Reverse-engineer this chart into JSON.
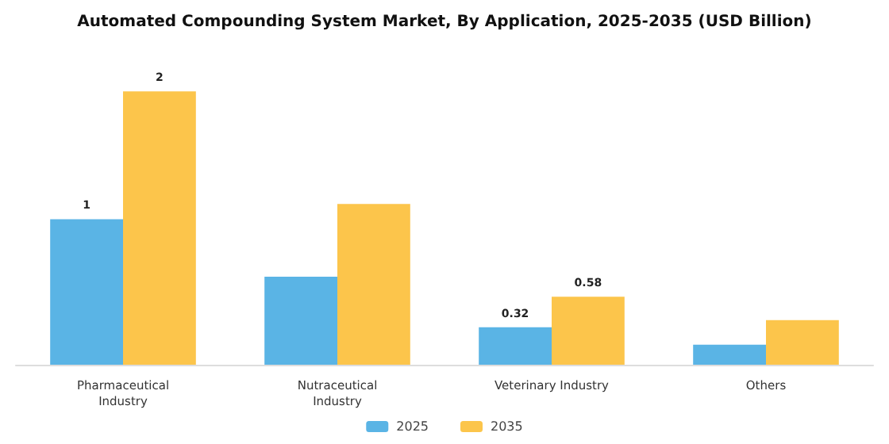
{
  "chart_data": {
    "type": "bar",
    "title": "Automated Compounding System Market, By Application, 2025-2035 (USD Billion)",
    "categories": [
      "Pharmaceutical\nIndustry",
      "Nutraceutical\nIndustry",
      "Veterinary Industry",
      "Others"
    ],
    "series": [
      {
        "name": "2025",
        "color": "#5ab4e5",
        "values": [
          1.24,
          0.75,
          0.32,
          0.17
        ],
        "value_labels": [
          "1",
          null,
          "0.32",
          null
        ]
      },
      {
        "name": "2035",
        "color": "#fcc54b",
        "values": [
          2.33,
          1.37,
          0.58,
          0.38
        ],
        "value_labels": [
          "2",
          null,
          "0.58",
          null
        ]
      }
    ],
    "legend": "bottom"
  }
}
